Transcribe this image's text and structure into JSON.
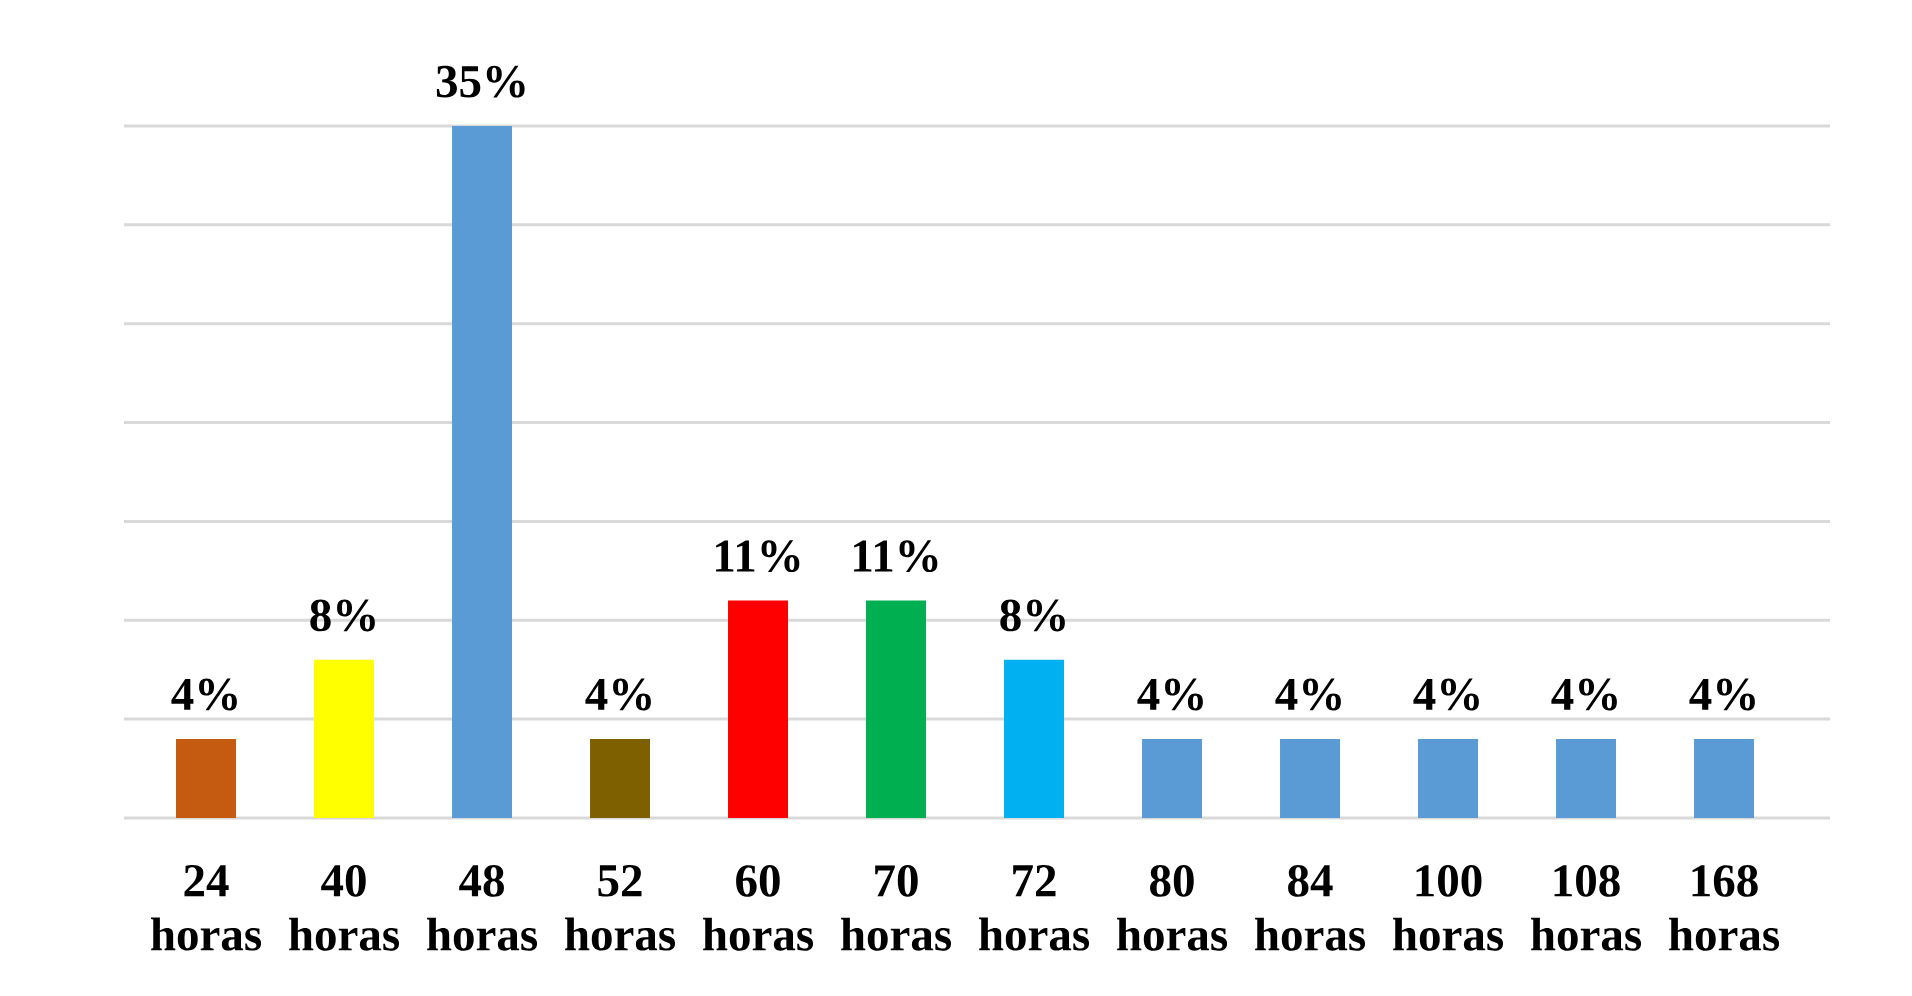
{
  "chart_data": {
    "type": "bar",
    "categories": [
      "24 horas",
      "40 horas",
      "48 horas",
      "52 horas",
      "60 horas",
      "70 horas",
      "72 horas",
      "80 horas",
      "84 horas",
      "100 horas",
      "108 horas",
      "168 horas"
    ],
    "values": [
      4,
      8,
      35,
      4,
      11,
      11,
      8,
      4,
      4,
      4,
      4,
      4
    ],
    "value_labels": [
      "4%",
      "8%",
      "35%",
      "4%",
      "11%",
      "11%",
      "8%",
      "4%",
      "4%",
      "4%",
      "4%",
      "4%"
    ],
    "colors": [
      "#c55a11",
      "#ffff00",
      "#5b9bd5",
      "#7f6000",
      "#ff0000",
      "#00b050",
      "#00b0f0",
      "#5b9bd5",
      "#5b9bd5",
      "#5b9bd5",
      "#5b9bd5",
      "#5b9bd5"
    ],
    "ylim": [
      0,
      35
    ],
    "yticks": [
      {
        "value": 0,
        "label": null
      },
      {
        "value": 5,
        "label": null
      },
      {
        "value": 10,
        "label": null
      },
      {
        "value": 15,
        "label": null
      },
      {
        "value": 20,
        "label": null
      },
      {
        "value": 25,
        "label": null
      },
      {
        "value": 30,
        "label": null
      },
      {
        "value": 35,
        "label": null
      }
    ],
    "grid": "y",
    "tick_labels": "x"
  }
}
